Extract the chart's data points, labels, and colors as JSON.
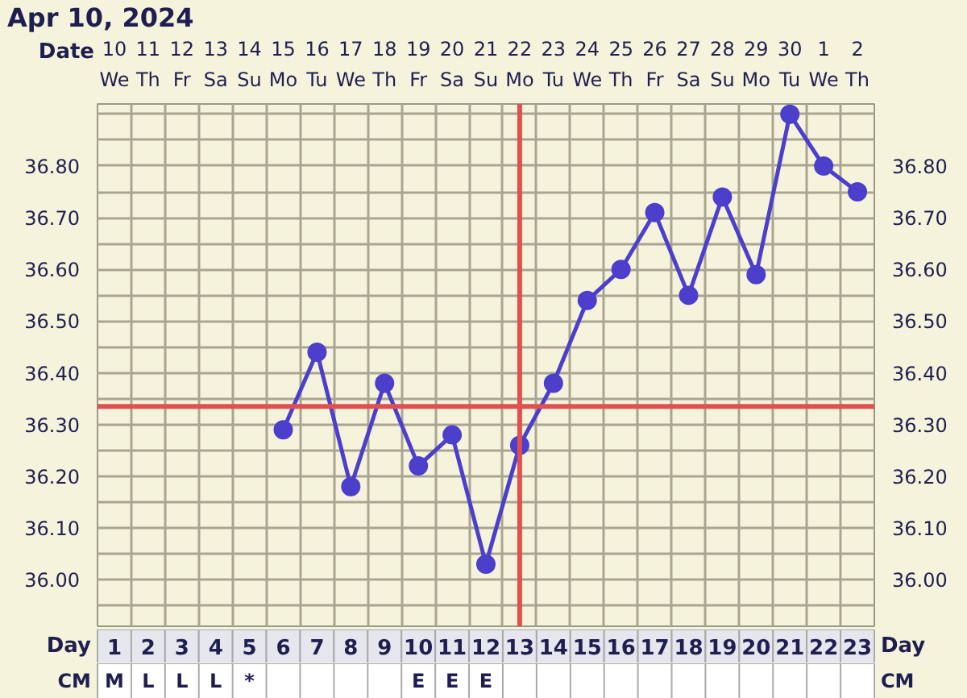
{
  "chart_data": [
    {
      "type": "line",
      "title": "Apr 10, 2024",
      "xlabel": "Date",
      "x2label": "Day",
      "x": [
        "2024-04-15",
        "2024-04-16",
        "2024-04-17",
        "2024-04-18",
        "2024-04-19",
        "2024-04-20",
        "2024-04-21",
        "2024-04-22",
        "2024-04-23",
        "2024-04-24",
        "2024-04-25",
        "2024-04-26",
        "2024-04-27",
        "2024-04-28",
        "2024-04-29",
        "2024-04-30",
        "2024-05-01",
        "2024-05-02"
      ],
      "series": [
        {
          "color": "#4b3fcc",
          "values": [
            36.29,
            36.44,
            36.18,
            36.38,
            36.22,
            36.28,
            36.03,
            36.26,
            36.38,
            36.54,
            36.6,
            36.71,
            36.55,
            36.74,
            36.59,
            36.9,
            36.8,
            36.75
          ]
        }
      ],
      "xlim": [
        "2024-04-09T12:00",
        "2024-05-02T12:00"
      ],
      "xticks": [
        {
          "value": "2024-04-10",
          "label": "10\nWe"
        },
        {
          "value": "2024-04-11",
          "label": "11\nTh"
        },
        {
          "value": "2024-04-12",
          "label": "12\nFr"
        },
        {
          "value": "2024-04-13",
          "label": "13\nSa"
        },
        {
          "value": "2024-04-14",
          "label": "14\nSu"
        },
        {
          "value": "2024-04-15",
          "label": "15\nMo"
        },
        {
          "value": "2024-04-16",
          "label": "16\nTu"
        },
        {
          "value": "2024-04-17",
          "label": "17\nWe"
        },
        {
          "value": "2024-04-18",
          "label": "18\nTh"
        },
        {
          "value": "2024-04-19",
          "label": "19\nFr"
        },
        {
          "value": "2024-04-20",
          "label": "20\nSa"
        },
        {
          "value": "2024-04-21",
          "label": "21\nSu"
        },
        {
          "value": "2024-04-22",
          "label": "22\nMo"
        },
        {
          "value": "2024-04-23",
          "label": "23\nTu"
        },
        {
          "value": "2024-04-24",
          "label": "24\nWe"
        },
        {
          "value": "2024-04-25",
          "label": "25\nTh"
        },
        {
          "value": "2024-04-26",
          "label": "26\nFr"
        },
        {
          "value": "2024-04-27",
          "label": "27\nSa"
        },
        {
          "value": "2024-04-28",
          "label": "28\nSu"
        },
        {
          "value": "2024-04-29",
          "label": "29\nMo"
        },
        {
          "value": "2024-04-30",
          "label": "30\nTu"
        },
        {
          "value": "2024-05-01",
          "label": "1\nWe"
        },
        {
          "value": "2024-05-02",
          "label": "2\nTh"
        }
      ],
      "x2lim": [
        0.5,
        23.5
      ],
      "x2ticks": [
        1,
        2,
        3,
        4,
        5,
        6,
        7,
        8,
        9,
        10,
        11,
        12,
        13,
        14,
        15,
        16,
        17,
        18,
        19,
        20,
        21,
        22,
        23
      ],
      "ylim": [
        35.91,
        36.92
      ],
      "yticks": [
        {
          "value": 36.0,
          "label": "36.00"
        },
        {
          "value": 36.1,
          "label": "36.10"
        },
        {
          "value": 36.2,
          "label": "36.20"
        },
        {
          "value": 36.3,
          "label": "36.30"
        },
        {
          "value": 36.4,
          "label": "36.40"
        },
        {
          "value": 36.5,
          "label": "36.50"
        },
        {
          "value": 36.6,
          "label": "36.60"
        },
        {
          "value": 36.7,
          "label": "36.70"
        },
        {
          "value": 36.8,
          "label": "36.80"
        }
      ],
      "y2lim": [
        35.91,
        36.92
      ],
      "y2ticks": [
        {
          "value": 36.0,
          "label": "36.00"
        },
        {
          "value": 36.1,
          "label": "36.10"
        },
        {
          "value": 36.2,
          "label": "36.20"
        },
        {
          "value": 36.3,
          "label": "36.30"
        },
        {
          "value": 36.4,
          "label": "36.40"
        },
        {
          "value": 36.5,
          "label": "36.50"
        },
        {
          "value": 36.6,
          "label": "36.60"
        },
        {
          "value": 36.7,
          "label": "36.70"
        },
        {
          "value": 36.8,
          "label": "36.80"
        }
      ],
      "ref_lines": [
        {
          "axis": "y",
          "value": 36.335,
          "color": "#e05050"
        },
        {
          "axis": "x",
          "value": "2024-04-22",
          "color": "#e05050"
        }
      ],
      "grid": true,
      "marker": "circle",
      "line_style": "solid"
    },
    {
      "type": "other",
      "ylabel": "CM",
      "y2label": "CM",
      "categories": [
        "M",
        "L",
        "L",
        "L",
        "*",
        null,
        null,
        null,
        null,
        "E",
        "E",
        "E",
        null,
        null,
        null,
        null,
        null,
        null,
        null,
        null,
        null,
        null,
        null
      ]
    }
  ]
}
